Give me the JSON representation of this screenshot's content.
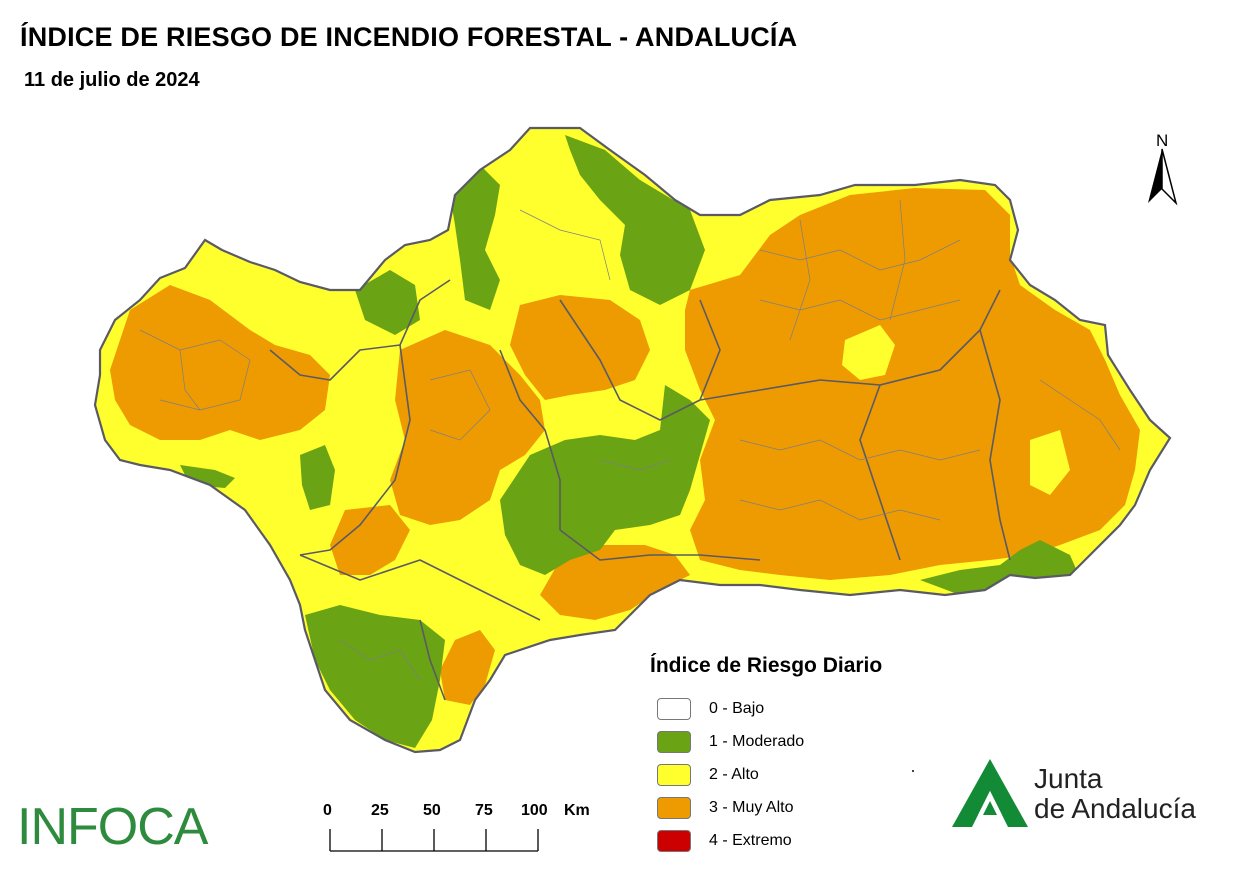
{
  "title": "ÍNDICE DE RIESGO DE INCENDIO FORESTAL - ANDALUCÍA",
  "date": "11 de julio de 2024",
  "north_label": "N",
  "legend": {
    "title": "Índice de Riesgo Diario",
    "items": [
      {
        "label": "0 - Bajo",
        "color": "#ffffff"
      },
      {
        "label": "1 - Moderado",
        "color": "#6aa313"
      },
      {
        "label": "2 - Alto",
        "color": "#ffff2e"
      },
      {
        "label": "3 - Muy Alto",
        "color": "#ed9b00"
      },
      {
        "label": "4 - Extremo",
        "color": "#cc0000"
      }
    ]
  },
  "scale": {
    "ticks": [
      "0",
      "25",
      "50",
      "75",
      "100"
    ],
    "unit": "Km"
  },
  "logos": {
    "infoca": "INFOCA",
    "junta_line1": "Junta",
    "junta_line2": "de Andalucía"
  },
  "colors": {
    "border": "#5a5a66",
    "brand_green": "#2e8b3e"
  }
}
